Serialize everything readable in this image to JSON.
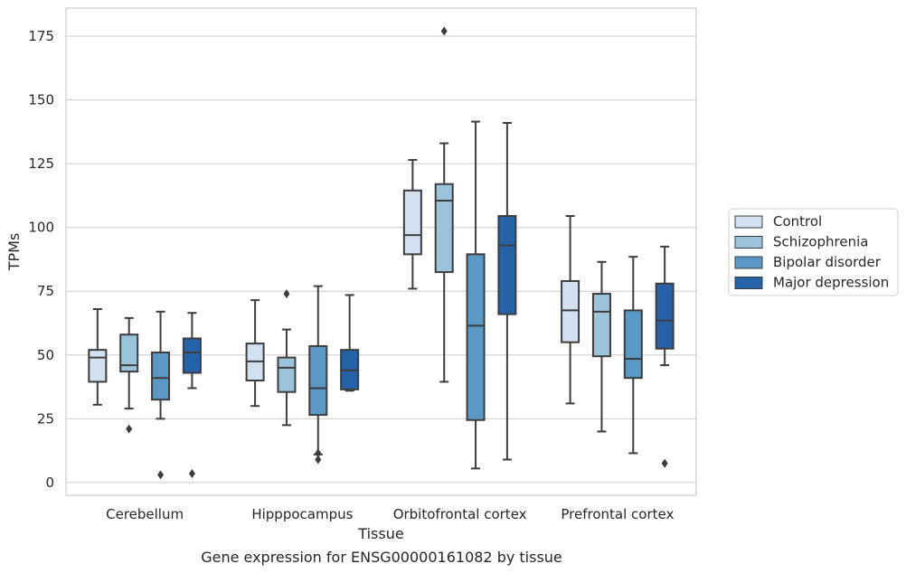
{
  "caption": "Gene expression for ENSG00000161082 by tissue",
  "chart_data": {
    "type": "box",
    "xlabel": "Tissue",
    "ylabel": "TPMs",
    "ylim": [
      -5,
      186
    ],
    "yticks": [
      0,
      25,
      50,
      75,
      100,
      125,
      150,
      175
    ],
    "grid": "horizontal",
    "legend_position": "right",
    "categories": [
      "Cerebellum",
      "Hipppocampus",
      "Orbitofrontal cortex",
      "Prefrontal cortex"
    ],
    "series": [
      {
        "name": "Control",
        "color": "#d1e1f0",
        "boxes": [
          {
            "whisker_low": 30.5,
            "q1": 39.5,
            "median": 49,
            "q3": 52,
            "whisker_high": 68,
            "outliers": []
          },
          {
            "whisker_low": 30,
            "q1": 40,
            "median": 47.5,
            "q3": 54.5,
            "whisker_high": 71.5,
            "outliers": []
          },
          {
            "whisker_low": 76,
            "q1": 89.5,
            "median": 97,
            "q3": 114.5,
            "whisker_high": 126.5,
            "outliers": []
          },
          {
            "whisker_low": 31,
            "q1": 55,
            "median": 67.5,
            "q3": 79,
            "whisker_high": 104.5,
            "outliers": []
          }
        ]
      },
      {
        "name": "Schizophrenia",
        "color": "#9cc3dc",
        "boxes": [
          {
            "whisker_low": 29,
            "q1": 43.5,
            "median": 46,
            "q3": 58,
            "whisker_high": 64.5,
            "outliers": [
              21
            ]
          },
          {
            "whisker_low": 22.5,
            "q1": 35.5,
            "median": 45,
            "q3": 49,
            "whisker_high": 60,
            "outliers": [
              74
            ]
          },
          {
            "whisker_low": 39.5,
            "q1": 82.5,
            "median": 110.5,
            "q3": 117,
            "whisker_high": 133,
            "outliers": [
              177
            ]
          },
          {
            "whisker_low": 20,
            "q1": 49.5,
            "median": 67,
            "q3": 74,
            "whisker_high": 86.5,
            "outliers": []
          }
        ]
      },
      {
        "name": "Bipolar disorder",
        "color": "#5a99c6",
        "boxes": [
          {
            "whisker_low": 25,
            "q1": 32.5,
            "median": 41,
            "q3": 51,
            "whisker_high": 67,
            "outliers": [
              3
            ]
          },
          {
            "whisker_low": 11,
            "q1": 26.5,
            "median": 37,
            "q3": 53.5,
            "whisker_high": 77,
            "outliers": [
              9,
              11.5
            ]
          },
          {
            "whisker_low": 5.5,
            "q1": 24.5,
            "median": 61.5,
            "q3": 89.5,
            "whisker_high": 141.5,
            "outliers": []
          },
          {
            "whisker_low": 11.5,
            "q1": 41,
            "median": 48.5,
            "q3": 67.5,
            "whisker_high": 88.5,
            "outliers": []
          }
        ]
      },
      {
        "name": "Major depression",
        "color": "#2562a8",
        "boxes": [
          {
            "whisker_low": 37,
            "q1": 43,
            "median": 51,
            "q3": 56.5,
            "whisker_high": 66.5,
            "outliers": [
              3.5
            ]
          },
          {
            "whisker_low": 36,
            "q1": 36.5,
            "median": 44,
            "q3": 52,
            "whisker_high": 73.5,
            "outliers": []
          },
          {
            "whisker_low": 9,
            "q1": 66,
            "median": 93,
            "q3": 104.5,
            "whisker_high": 141,
            "outliers": []
          },
          {
            "whisker_low": 46,
            "q1": 52.5,
            "median": 63.5,
            "q3": 78,
            "whisker_high": 92.5,
            "outliers": [
              7.5
            ]
          }
        ]
      }
    ]
  }
}
